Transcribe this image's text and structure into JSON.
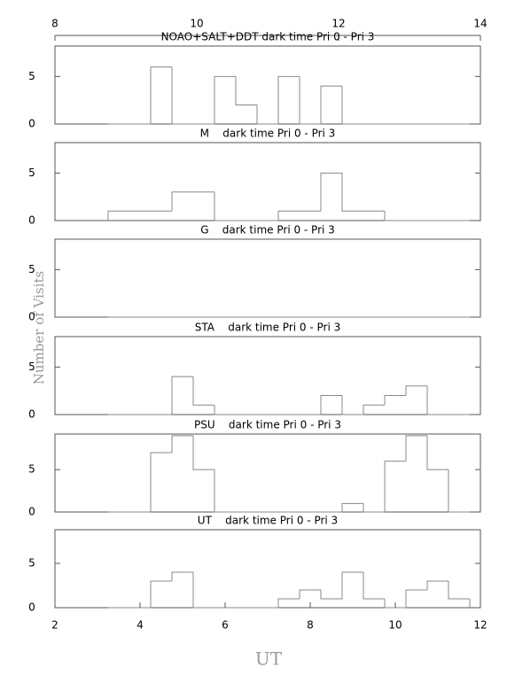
{
  "axes": {
    "x_label": "UT",
    "y_label": "Number of Visits",
    "xlim": [
      2,
      12
    ],
    "xticks": [
      2,
      4,
      6,
      8,
      10,
      12
    ],
    "top_xlim": [
      8,
      14
    ],
    "top_xticks": [
      8,
      10,
      12,
      14
    ]
  },
  "chart_data": [
    {
      "type": "histogram",
      "title": "NOAO+SALT+DDT dark time Pri 0 - Pri 3",
      "color": "#888888",
      "ylim": [
        0,
        8.2
      ],
      "yticks": [
        0,
        5
      ],
      "bins": [
        3.25,
        3.75,
        4.25,
        4.75,
        5.25,
        5.75,
        6.25,
        6.75,
        7.25,
        7.75,
        8.25,
        8.75,
        9.25,
        9.75,
        10.25,
        10.75,
        11.25,
        11.75
      ],
      "values": [
        0,
        0,
        6,
        0,
        0,
        5,
        2,
        0,
        5,
        0,
        4,
        0,
        0,
        0,
        0,
        0,
        0
      ]
    },
    {
      "type": "histogram",
      "title": "M    dark time Pri 0 - Pri 3",
      "color": "#888888",
      "ylim": [
        0,
        8.2
      ],
      "yticks": [
        0,
        5
      ],
      "bins": [
        3.25,
        3.75,
        4.25,
        4.75,
        5.25,
        5.75,
        6.25,
        6.75,
        7.25,
        7.75,
        8.25,
        8.75,
        9.25,
        9.75,
        10.25,
        10.75,
        11.25,
        11.75
      ],
      "values": [
        1,
        1,
        1,
        3,
        3,
        0,
        0,
        0,
        1,
        1,
        5,
        1,
        1,
        0,
        0,
        0,
        0
      ]
    },
    {
      "type": "histogram",
      "title": "G    dark time Pri 0 - Pri 3",
      "color": "#888888",
      "ylim": [
        0,
        8.2
      ],
      "yticks": [
        0,
        5
      ],
      "bins": [
        3.25,
        3.75,
        4.25,
        4.75,
        5.25,
        5.75,
        6.25,
        6.75,
        7.25,
        7.75,
        8.25,
        8.75,
        9.25,
        9.75,
        10.25,
        10.75,
        11.25,
        11.75
      ],
      "values": [
        0,
        0,
        0,
        0,
        0,
        0,
        0,
        0,
        0,
        0,
        0,
        0,
        0,
        0,
        0,
        0,
        0
      ]
    },
    {
      "type": "histogram",
      "title": "STA    dark time Pri 0 - Pri 3",
      "color": "#888888",
      "ylim": [
        0,
        8.2
      ],
      "yticks": [
        0,
        5
      ],
      "bins": [
        3.25,
        3.75,
        4.25,
        4.75,
        5.25,
        5.75,
        6.25,
        6.75,
        7.25,
        7.75,
        8.25,
        8.75,
        9.25,
        9.75,
        10.25,
        10.75,
        11.25,
        11.75
      ],
      "values": [
        0,
        0,
        0,
        4,
        1,
        0,
        0,
        0,
        0,
        0,
        2,
        0,
        1,
        2,
        3,
        0,
        0
      ]
    },
    {
      "type": "histogram",
      "title": "PSU    dark time Pri 0 - Pri 3",
      "color": "#888888",
      "ylim": [
        0,
        9.2
      ],
      "yticks": [
        0,
        5
      ],
      "bins": [
        3.25,
        3.75,
        4.25,
        4.75,
        5.25,
        5.75,
        6.25,
        6.75,
        7.25,
        7.75,
        8.25,
        8.75,
        9.25,
        9.75,
        10.25,
        10.75,
        11.25,
        11.75
      ],
      "values": [
        0,
        0,
        7,
        9,
        5,
        0,
        0,
        0,
        0,
        0,
        0,
        1,
        0,
        6,
        9,
        5,
        0
      ]
    },
    {
      "type": "histogram",
      "title": "UT    dark time Pri 0 - Pri 3",
      "color": "#888888",
      "ylim": [
        0,
        8.8
      ],
      "yticks": [
        0,
        5
      ],
      "bins": [
        3.25,
        3.75,
        4.25,
        4.75,
        5.25,
        5.75,
        6.25,
        6.75,
        7.25,
        7.75,
        8.25,
        8.75,
        9.25,
        9.75,
        10.25,
        10.75,
        11.25,
        11.75
      ],
      "values": [
        0,
        0,
        3,
        4,
        0,
        0,
        0,
        0,
        1,
        2,
        1,
        4,
        1,
        0,
        2,
        3,
        1
      ]
    }
  ]
}
